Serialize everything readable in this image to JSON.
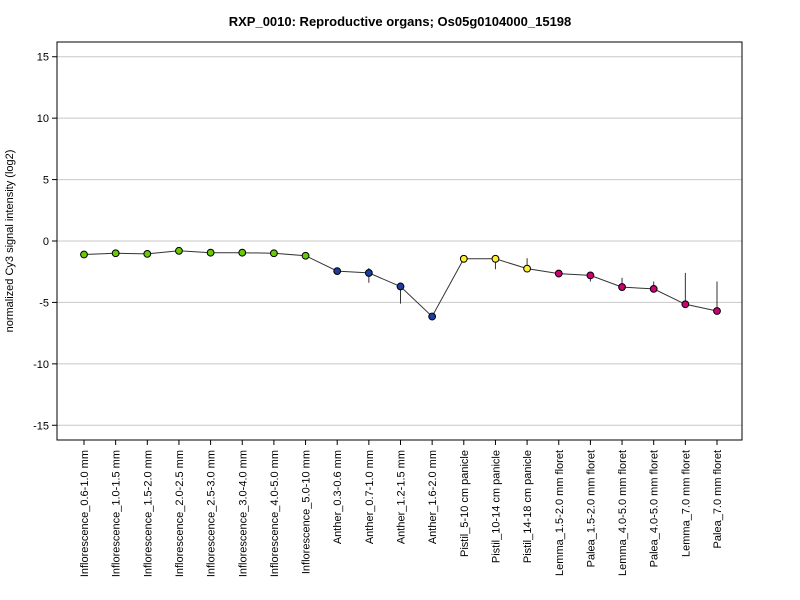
{
  "chart_data": {
    "type": "line",
    "title": "RXP_0010: Reproductive organs; Os05g0104000_15198",
    "xlabel": "",
    "ylabel": "normalized Cy3 signal intensity (log2)",
    "ylim": [
      -16.2,
      16.2
    ],
    "yticks": [
      -15,
      -10,
      -5,
      0,
      5,
      10,
      15
    ],
    "grid": true,
    "categories": [
      "Inflorescence_0.6-1.0 mm",
      "Inflorescence_1.0-1.5 mm",
      "Inflorescence_1.5-2.0 mm",
      "Inflorescence_2.0-2.5 mm",
      "Inflorescence_2.5-3.0 mm",
      "Inflorescence_3.0-4.0 mm",
      "Inflorescence_4.0-5.0 mm",
      "Inflorescence_5.0-10 mm",
      "Anther_0.3-0.6 mm",
      "Anther_0.7-1.0 mm",
      "Anther_1.2-1.5 mm",
      "Anther_1.6-2.0 mm",
      "Pistil_5-10 cm panicle",
      "Pistil_10-14 cm panicle",
      "Pistil_14-18 cm panicle",
      "Lemma_1.5-2.0 mm floret",
      "Palea_1.5-2.0 mm floret",
      "Lemma_4.0-5.0 mm floret",
      "Palea_4.0-5.0 mm floret",
      "Lemma_7.0 mm floret",
      "Palea_7.0 mm floret"
    ],
    "values": [
      -1.1,
      -1.0,
      -1.05,
      -0.8,
      -0.95,
      -0.95,
      -1.0,
      -1.2,
      -2.45,
      -2.6,
      -3.7,
      -6.15,
      -1.45,
      -1.45,
      -2.25,
      -2.65,
      -2.8,
      -3.75,
      -3.9,
      -5.15,
      -5.7
    ],
    "error_low": [
      -1.1,
      -1.0,
      -1.05,
      -0.8,
      -0.95,
      -0.95,
      -1.0,
      -1.2,
      -2.45,
      -3.4,
      -5.1,
      -6.15,
      -1.45,
      -2.3,
      -2.25,
      -2.65,
      -3.3,
      -3.75,
      -3.9,
      -5.15,
      -5.7
    ],
    "error_high": [
      -1.1,
      -1.0,
      -1.05,
      -0.8,
      -0.95,
      -0.95,
      -1.0,
      -1.2,
      -2.45,
      -2.2,
      -3.7,
      -6.15,
      -1.45,
      -1.45,
      -1.4,
      -2.65,
      -2.8,
      -3.0,
      -3.3,
      -2.6,
      -3.3
    ],
    "point_colors": [
      "#66cc00",
      "#66cc00",
      "#66cc00",
      "#66cc00",
      "#66cc00",
      "#66cc00",
      "#66cc00",
      "#66cc00",
      "#1a3fa0",
      "#1a3fa0",
      "#1a3fa0",
      "#1a3fa0",
      "#ffee33",
      "#ffee33",
      "#ffee33",
      "#cc0077",
      "#cc0077",
      "#cc0077",
      "#cc0077",
      "#cc0077",
      "#cc0077"
    ]
  }
}
